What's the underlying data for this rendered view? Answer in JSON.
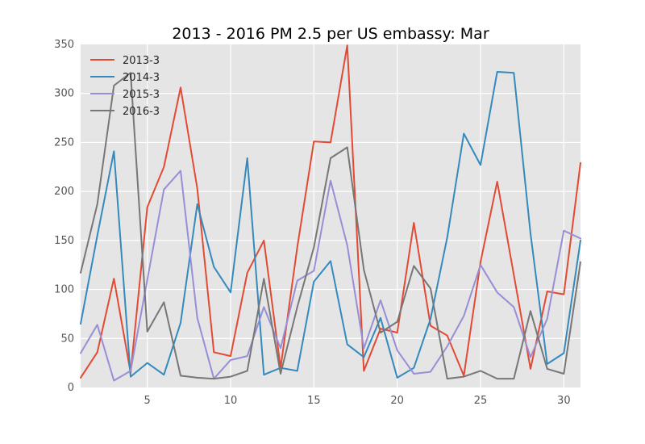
{
  "chart_data": {
    "type": "line",
    "title": "2013 - 2016 PM 2.5 per US embassy: Mar",
    "xlabel": "",
    "ylabel": "",
    "xlim": [
      1,
      31
    ],
    "ylim": [
      0,
      350
    ],
    "x_ticks": [
      5,
      10,
      15,
      20,
      25,
      30
    ],
    "y_ticks": [
      0,
      50,
      100,
      150,
      200,
      250,
      300,
      350
    ],
    "grid": true,
    "legend_position": "top-left",
    "x": [
      1,
      2,
      3,
      4,
      5,
      6,
      7,
      8,
      9,
      10,
      11,
      12,
      13,
      14,
      15,
      16,
      17,
      18,
      19,
      20,
      21,
      22,
      23,
      24,
      25,
      26,
      27,
      28,
      29,
      30,
      31
    ],
    "series": [
      {
        "name": "2013-3",
        "color": "#e24a33",
        "values": [
          10,
          36,
          111,
          15,
          184,
          225,
          306,
          203,
          36,
          32,
          117,
          150,
          20,
          143,
          251,
          250,
          349,
          17,
          60,
          56,
          168,
          63,
          53,
          12,
          128,
          210,
          115,
          19,
          98,
          95,
          229
        ]
      },
      {
        "name": "2014-3",
        "color": "#348abd",
        "values": [
          65,
          155,
          241,
          11,
          25,
          13,
          66,
          187,
          123,
          97,
          234,
          13,
          20,
          17,
          108,
          129,
          44,
          31,
          71,
          10,
          20,
          70,
          153,
          259,
          227,
          322,
          321,
          157,
          24,
          35,
          150
        ]
      },
      {
        "name": "2015-3",
        "color": "#988ed5",
        "values": [
          35,
          64,
          7,
          17,
          110,
          202,
          221,
          71,
          9,
          28,
          32,
          82,
          40,
          109,
          119,
          211,
          145,
          40,
          89,
          38,
          14,
          16,
          42,
          73,
          125,
          97,
          82,
          31,
          70,
          160,
          152
        ]
      },
      {
        "name": "2016-3",
        "color": "#777777",
        "values": [
          117,
          187,
          308,
          321,
          57,
          87,
          12,
          10,
          9,
          11,
          17,
          111,
          14,
          82,
          143,
          234,
          245,
          120,
          56,
          67,
          124,
          101,
          9,
          11,
          17,
          9,
          9,
          78,
          19,
          14,
          128
        ]
      }
    ]
  }
}
